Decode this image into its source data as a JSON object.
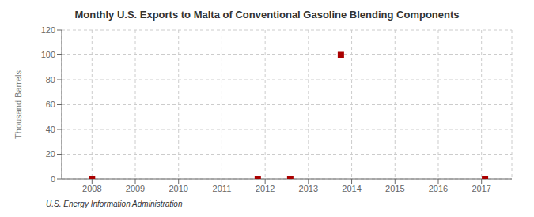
{
  "chart_data": {
    "type": "scatter",
    "title": "Monthly U.S. Exports to Malta of Conventional Gasoline Blending Components",
    "ylabel": "Thousand Barrels",
    "source": "U.S. Energy Information Administration",
    "x": [
      2008.0,
      2011.83,
      2012.58,
      2013.75,
      2017.08
    ],
    "values": [
      0,
      0,
      0,
      100,
      0
    ],
    "color": "#aa0000",
    "marker": "square",
    "xlim": [
      2007.3,
      2017.7
    ],
    "ylim": [
      0,
      120
    ],
    "xticks": [
      2008,
      2009,
      2010,
      2011,
      2012,
      2013,
      2014,
      2015,
      2016,
      2017
    ],
    "yticks": [
      0,
      20,
      40,
      60,
      80,
      100,
      120
    ],
    "grid": true
  }
}
